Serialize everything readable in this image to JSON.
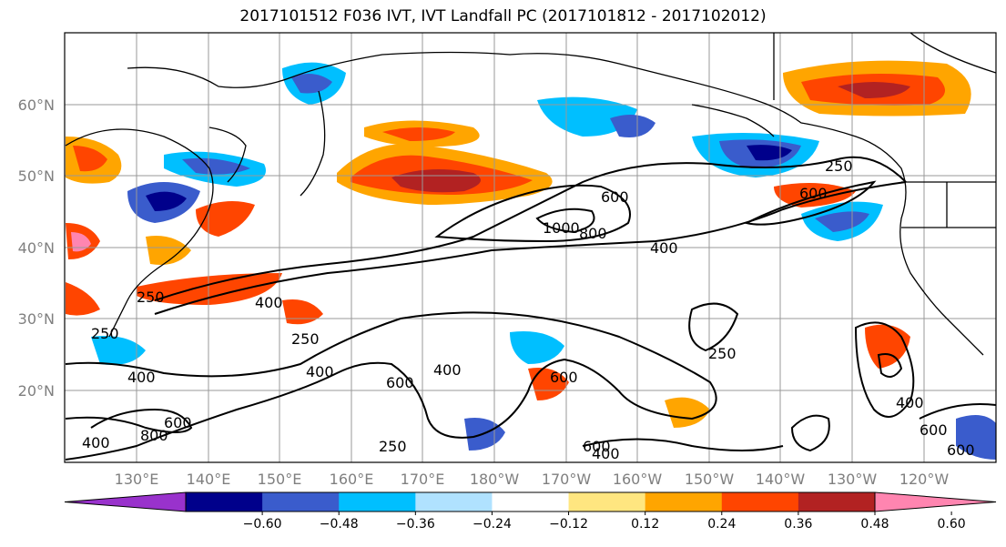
{
  "title": "2017101512 F036 IVT, IVT Landfall PC (2017101812 - 2017102012)",
  "lat_labels": [
    "60°N",
    "50°N",
    "40°N",
    "30°N",
    "20°N"
  ],
  "lon_labels": [
    "130°E",
    "140°E",
    "150°E",
    "160°E",
    "170°E",
    "180°W",
    "170°W",
    "160°W",
    "150°W",
    "140°W",
    "130°W",
    "120°W"
  ],
  "colorbar": {
    "colors": [
      "#9932cc",
      "#00008b",
      "#3a5ccc",
      "#00bfff",
      "#b0e2ff",
      "#ffffff",
      "#ffe680",
      "#ffa500",
      "#ff4500",
      "#b22222",
      "#ff85b0"
    ],
    "tick_labels": [
      "−0.60",
      "−0.48",
      "−0.36",
      "−0.24",
      "−0.12",
      "0.12",
      "0.24",
      "0.36",
      "0.48",
      "0.60"
    ]
  },
  "contour_labels": [
    "250",
    "400",
    "600",
    "1000",
    "800",
    "400",
    "600",
    "400",
    "250",
    "400",
    "600",
    "400",
    "600",
    "250",
    "250",
    "400",
    "600",
    "250",
    "400",
    "800",
    "600",
    "400",
    "600",
    "600",
    "250"
  ]
}
